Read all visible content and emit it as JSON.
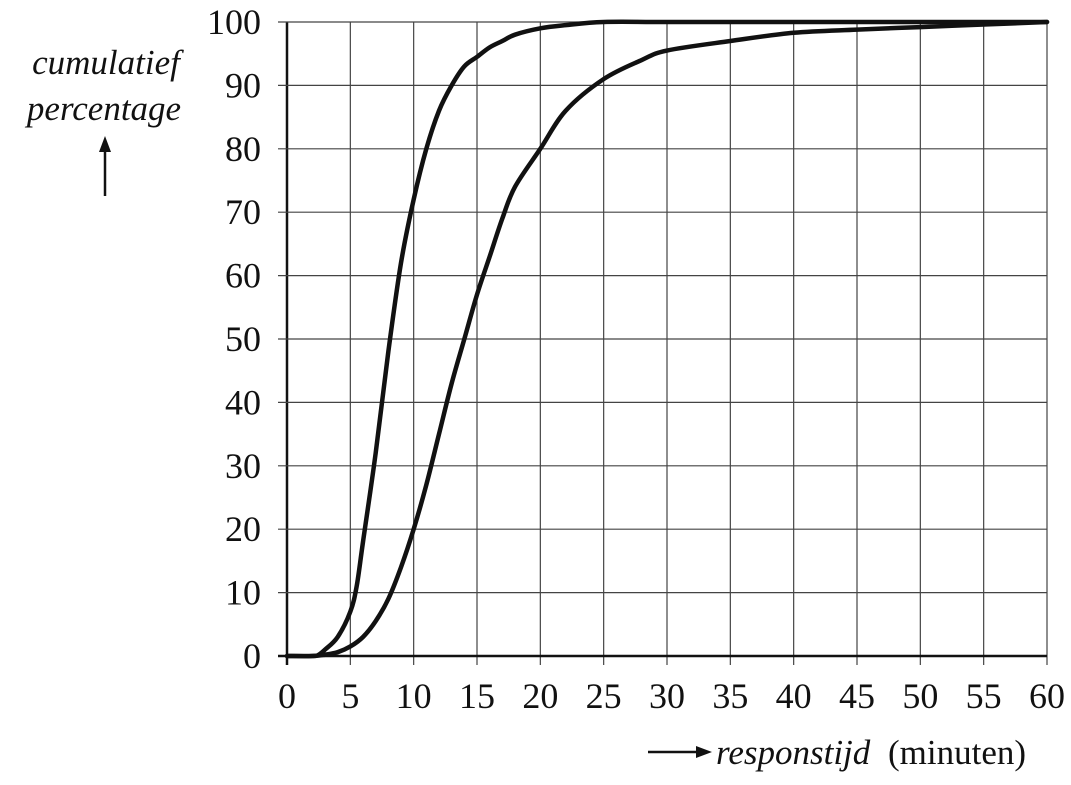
{
  "chart_data": {
    "type": "line",
    "title": "",
    "ylabel_lines": [
      "cumulatief",
      "percentage"
    ],
    "xlabel_italic": "responstijd",
    "xlabel_unit": "(minuten)",
    "xlim": [
      0,
      60
    ],
    "ylim": [
      0,
      100
    ],
    "xticks": [
      0,
      5,
      10,
      15,
      20,
      25,
      30,
      35,
      40,
      45,
      50,
      55,
      60
    ],
    "yticks": [
      0,
      10,
      20,
      30,
      40,
      50,
      60,
      70,
      80,
      90,
      100
    ],
    "grid": true,
    "legend": "none",
    "line_color": "#111111",
    "series": [
      {
        "x": [
          0,
          2,
          2.5,
          3,
          4,
          5,
          5.5,
          6,
          7,
          8,
          9,
          10,
          11,
          12,
          13,
          14,
          15,
          16,
          17,
          18,
          20,
          22,
          25,
          30,
          40,
          50,
          60
        ],
        "y": [
          0,
          0,
          0.2,
          1,
          3,
          7,
          11,
          18,
          32,
          48,
          62,
          72,
          80,
          86,
          90,
          93,
          94.5,
          96,
          97,
          98,
          99,
          99.5,
          100,
          100,
          100,
          100,
          100
        ]
      },
      {
        "x": [
          0,
          2,
          3,
          4,
          5,
          6,
          7,
          8,
          9,
          10,
          11,
          12,
          13,
          14,
          15,
          16,
          17,
          18,
          20,
          22,
          25,
          28,
          30,
          35,
          40,
          45,
          50,
          55,
          60
        ],
        "y": [
          0,
          0,
          0.2,
          0.6,
          1.5,
          3,
          5.5,
          9,
          14,
          20,
          27,
          35,
          43,
          50,
          57,
          63,
          69,
          74,
          80,
          86,
          91,
          94,
          95.5,
          97,
          98.3,
          98.8,
          99.2,
          99.6,
          100
        ]
      }
    ]
  }
}
